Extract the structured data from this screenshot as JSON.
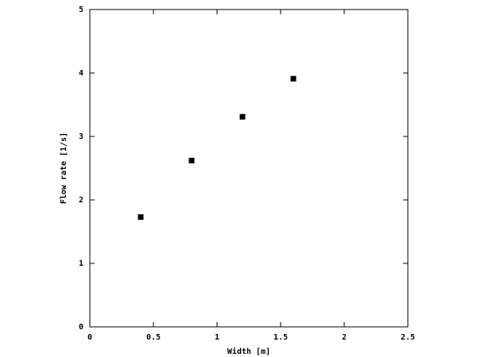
{
  "chart_data": {
    "type": "scatter",
    "xlabel": "Width [m]",
    "ylabel": "Flow rate [1/s]",
    "x": [
      0.4,
      0.8,
      1.2,
      1.6
    ],
    "values": [
      1.73,
      2.62,
      3.31,
      3.91
    ],
    "color": "#000000",
    "xlim": [
      0,
      2.5
    ],
    "xticks": [
      0,
      0.5,
      1,
      1.5,
      2,
      2.5
    ],
    "ylim": [
      0,
      5
    ],
    "yticks": [
      0,
      1,
      2,
      3,
      4,
      5
    ],
    "grid": false
  }
}
